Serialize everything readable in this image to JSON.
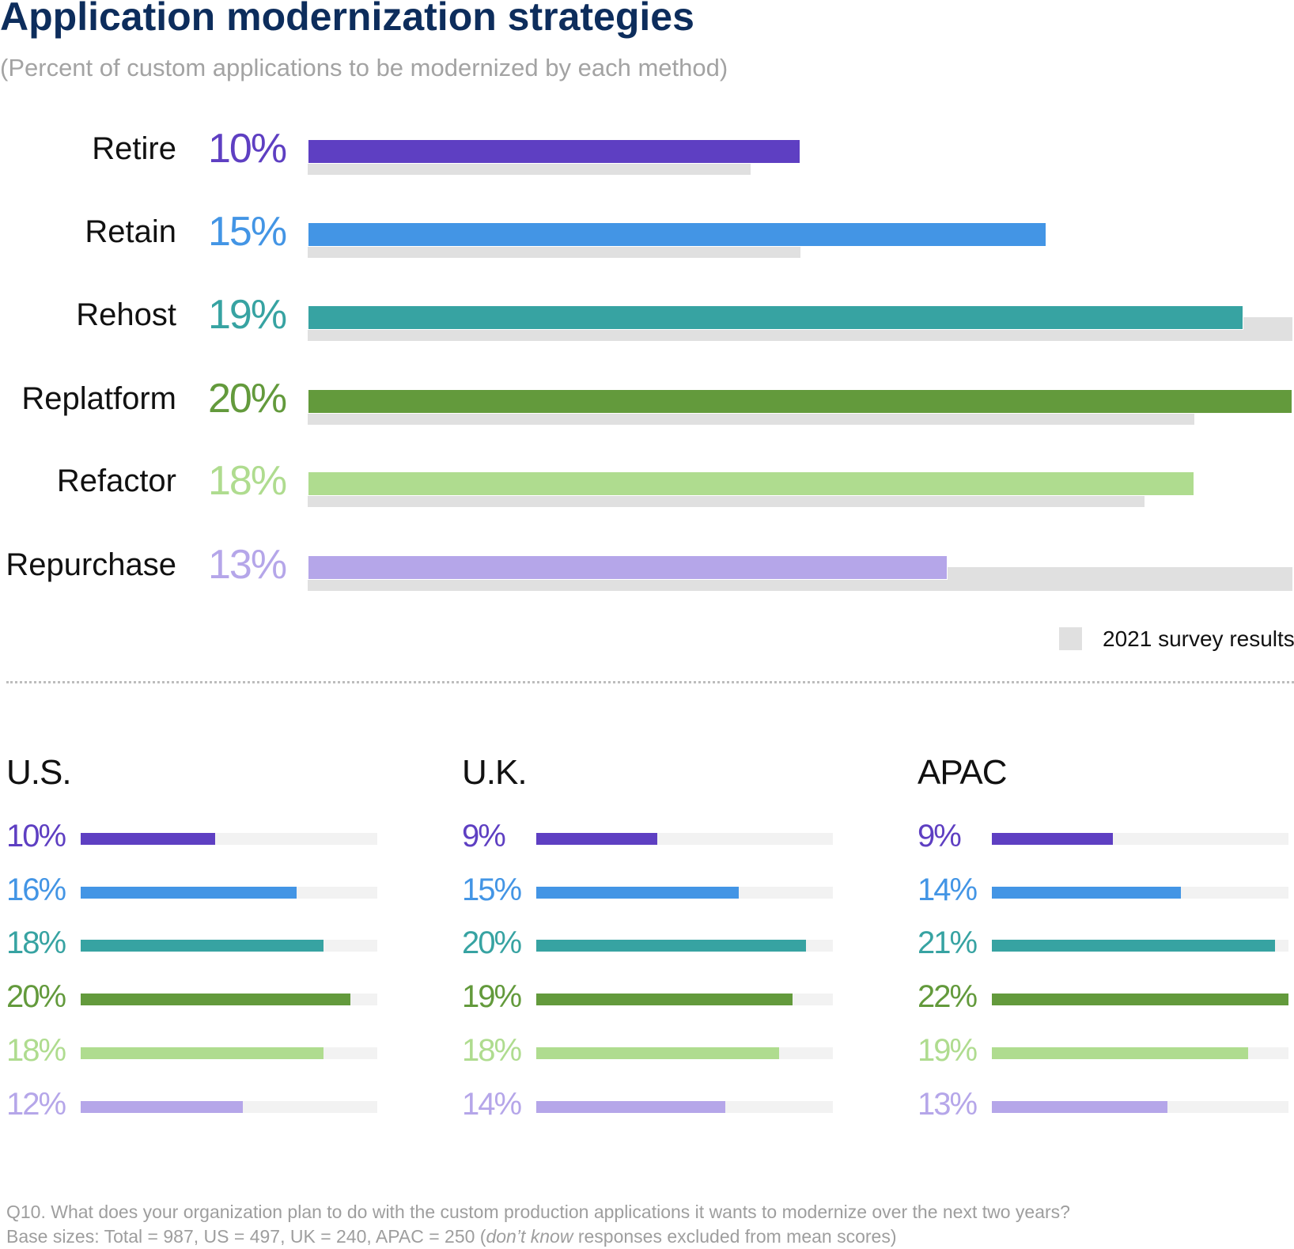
{
  "chart_data": [
    {
      "type": "bar",
      "orientation": "horizontal",
      "title": "Application modernization strategies",
      "subtitle": "(Percent of custom applications to be modernized by each method)",
      "categories": [
        "Retire",
        "Retain",
        "Rehost",
        "Replatform",
        "Refactor",
        "Repurchase"
      ],
      "series": [
        {
          "values": [
            10,
            15,
            19,
            20,
            18,
            13
          ],
          "labels": [
            "10%",
            "15%",
            "19%",
            "20%",
            "18%",
            "13%"
          ],
          "colors": [
            "#5e3fc2",
            "#4395e5",
            "#37a3a2",
            "#639a3c",
            "#afdc8f",
            "#b5a6e9"
          ]
        },
        {
          "name": "2021 survey results",
          "values": [
            9,
            10,
            20,
            18,
            17,
            20
          ],
          "color": "#e0e0e0"
        }
      ],
      "xlim": [
        0,
        20
      ],
      "grid": false,
      "legend": "bottom-right"
    },
    {
      "type": "bar",
      "orientation": "horizontal",
      "title": "U.S.",
      "values": [
        10,
        16,
        18,
        20,
        18,
        12
      ],
      "labels": [
        "10%",
        "16%",
        "18%",
        "20%",
        "18%",
        "12%"
      ],
      "xlim": [
        0,
        22
      ]
    },
    {
      "type": "bar",
      "orientation": "horizontal",
      "title": "U.K.",
      "values": [
        9,
        15,
        20,
        19,
        18,
        14
      ],
      "labels": [
        "9%",
        "15%",
        "20%",
        "19%",
        "18%",
        "14%"
      ],
      "xlim": [
        0,
        22
      ]
    },
    {
      "type": "bar",
      "orientation": "horizontal",
      "title": "APAC",
      "values": [
        9,
        14,
        21,
        22,
        19,
        13
      ],
      "labels": [
        "9%",
        "14%",
        "21%",
        "22%",
        "19%",
        "13%"
      ],
      "xlim": [
        0,
        22
      ]
    }
  ],
  "colors": {
    "title": "#0d2d5c",
    "track": "#f2f2f2",
    "legacy": "#e0e0e0"
  },
  "footnote": {
    "line1": "Q10. What does your organization plan to do with the custom production applications it wants to modernize over the next two years?",
    "line2_pre": "Base sizes: Total = 987, US = 497, UK = 240, APAC = 250 (",
    "line2_italic": "don’t know",
    "line2_post": " responses excluded from mean scores)"
  }
}
